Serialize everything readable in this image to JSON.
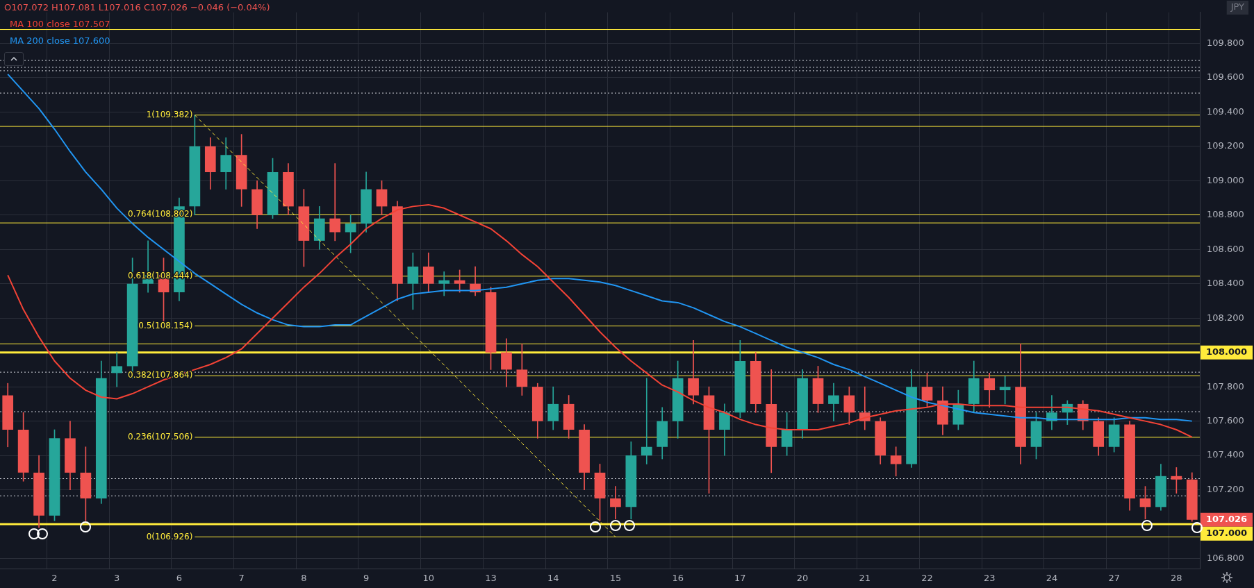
{
  "chart_data": {
    "type": "candlestick",
    "title": "O107.072 H107.081 L107.016 C107.026 −0.046 (−0.04%)",
    "categories": [
      null,
      null,
      null,
      "2",
      null,
      null,
      null,
      "3",
      null,
      null,
      null,
      "6",
      null,
      null,
      null,
      "7",
      null,
      null,
      null,
      "8",
      null,
      null,
      null,
      "9",
      null,
      null,
      null,
      "10",
      null,
      null,
      null,
      "13",
      null,
      null,
      null,
      "14",
      null,
      null,
      null,
      "15",
      null,
      null,
      null,
      "16",
      null,
      null,
      null,
      "17",
      null,
      null,
      null,
      "20",
      null,
      null,
      null,
      "21",
      null,
      null,
      null,
      "22",
      null,
      null,
      null,
      "23",
      null,
      null,
      null,
      "24",
      null,
      null,
      null,
      "27",
      null,
      null,
      null,
      "28",
      null
    ],
    "ohlc": [
      [
        107.75,
        107.82,
        107.45,
        107.55
      ],
      [
        107.55,
        107.65,
        107.25,
        107.3
      ],
      [
        107.3,
        107.4,
        106.98,
        107.05
      ],
      [
        107.05,
        107.55,
        107.02,
        107.5
      ],
      [
        107.5,
        107.6,
        107.2,
        107.3
      ],
      [
        107.3,
        107.45,
        107.02,
        107.15
      ],
      [
        107.15,
        107.95,
        107.12,
        107.85
      ],
      [
        107.88,
        108.0,
        107.8,
        107.92
      ],
      [
        107.92,
        108.55,
        107.85,
        108.4
      ],
      [
        108.4,
        108.65,
        108.35,
        108.45
      ],
      [
        108.45,
        108.55,
        108.18,
        108.35
      ],
      [
        108.35,
        108.9,
        108.3,
        108.85
      ],
      [
        108.85,
        109.382,
        108.8,
        109.2
      ],
      [
        109.2,
        109.25,
        108.95,
        109.05
      ],
      [
        109.05,
        109.25,
        108.95,
        109.15
      ],
      [
        109.15,
        109.27,
        108.85,
        108.95
      ],
      [
        108.95,
        109.0,
        108.72,
        108.8
      ],
      [
        108.8,
        109.13,
        108.78,
        109.05
      ],
      [
        109.05,
        109.1,
        108.8,
        108.85
      ],
      [
        108.85,
        108.95,
        108.5,
        108.65
      ],
      [
        108.65,
        108.85,
        108.6,
        108.78
      ],
      [
        108.78,
        109.1,
        108.65,
        108.7
      ],
      [
        108.7,
        108.8,
        108.58,
        108.75
      ],
      [
        108.75,
        109.05,
        108.7,
        108.95
      ],
      [
        108.95,
        109.0,
        108.8,
        108.85
      ],
      [
        108.85,
        108.88,
        108.3,
        108.4
      ],
      [
        108.4,
        108.58,
        108.25,
        108.5
      ],
      [
        108.5,
        108.58,
        108.35,
        108.4
      ],
      [
        108.4,
        108.47,
        108.33,
        108.42
      ],
      [
        108.42,
        108.48,
        108.35,
        108.4
      ],
      [
        108.4,
        108.5,
        108.33,
        108.35
      ],
      [
        108.35,
        108.38,
        107.9,
        108.0
      ],
      [
        108.0,
        108.08,
        107.8,
        107.9
      ],
      [
        107.9,
        108.05,
        107.75,
        107.8
      ],
      [
        107.8,
        107.82,
        107.5,
        107.6
      ],
      [
        107.6,
        107.8,
        107.55,
        107.7
      ],
      [
        107.7,
        107.75,
        107.5,
        107.55
      ],
      [
        107.55,
        107.58,
        107.2,
        107.3
      ],
      [
        107.3,
        107.35,
        107.02,
        107.15
      ],
      [
        107.15,
        107.22,
        107.03,
        107.1
      ],
      [
        107.1,
        107.48,
        107.03,
        107.4
      ],
      [
        107.4,
        107.85,
        107.35,
        107.45
      ],
      [
        107.45,
        107.68,
        107.38,
        107.6
      ],
      [
        107.6,
        107.95,
        107.5,
        107.85
      ],
      [
        107.85,
        108.07,
        107.7,
        107.75
      ],
      [
        107.75,
        107.8,
        107.18,
        107.55
      ],
      [
        107.55,
        107.7,
        107.4,
        107.65
      ],
      [
        107.65,
        108.07,
        107.62,
        107.95
      ],
      [
        107.95,
        108.0,
        107.65,
        107.7
      ],
      [
        107.7,
        107.9,
        107.3,
        107.45
      ],
      [
        107.45,
        107.65,
        107.4,
        107.55
      ],
      [
        107.55,
        107.9,
        107.5,
        107.85
      ],
      [
        107.85,
        107.92,
        107.65,
        107.7
      ],
      [
        107.7,
        107.82,
        107.6,
        107.75
      ],
      [
        107.75,
        107.8,
        107.58,
        107.65
      ],
      [
        107.65,
        107.8,
        107.55,
        107.6
      ],
      [
        107.6,
        107.62,
        107.35,
        107.4
      ],
      [
        107.4,
        107.45,
        107.28,
        107.35
      ],
      [
        107.35,
        107.9,
        107.33,
        107.8
      ],
      [
        107.8,
        107.88,
        107.68,
        107.72
      ],
      [
        107.72,
        107.8,
        107.52,
        107.58
      ],
      [
        107.58,
        107.78,
        107.55,
        107.7
      ],
      [
        107.7,
        107.95,
        107.65,
        107.85
      ],
      [
        107.85,
        107.88,
        107.68,
        107.78
      ],
      [
        107.78,
        107.86,
        107.7,
        107.8
      ],
      [
        107.8,
        108.05,
        107.35,
        107.45
      ],
      [
        107.45,
        107.65,
        107.38,
        107.6
      ],
      [
        107.6,
        107.75,
        107.55,
        107.65
      ],
      [
        107.65,
        107.72,
        107.58,
        107.7
      ],
      [
        107.7,
        107.72,
        107.55,
        107.6
      ],
      [
        107.6,
        107.62,
        107.4,
        107.45
      ],
      [
        107.45,
        107.62,
        107.42,
        107.58
      ],
      [
        107.58,
        107.6,
        107.08,
        107.15
      ],
      [
        107.15,
        107.22,
        107.03,
        107.1
      ],
      [
        107.1,
        107.35,
        107.08,
        107.28
      ],
      [
        107.28,
        107.33,
        107.18,
        107.26
      ],
      [
        107.26,
        107.3,
        107.016,
        107.026
      ]
    ],
    "series": [
      {
        "type": "line",
        "name": "MA 100 close 107.507",
        "color": "#f44336",
        "values": [
          108.45,
          108.25,
          108.09,
          107.95,
          107.85,
          107.78,
          107.74,
          107.73,
          107.76,
          107.8,
          107.84,
          107.87,
          107.9,
          107.93,
          107.97,
          108.02,
          108.11,
          108.2,
          108.29,
          108.38,
          108.46,
          108.55,
          108.63,
          108.72,
          108.78,
          108.83,
          108.85,
          108.86,
          108.84,
          108.8,
          108.76,
          108.72,
          108.65,
          108.57,
          108.5,
          108.41,
          108.32,
          108.22,
          108.12,
          108.03,
          107.95,
          107.88,
          107.81,
          107.77,
          107.72,
          107.68,
          107.65,
          107.61,
          107.58,
          107.56,
          107.55,
          107.55,
          107.55,
          107.57,
          107.59,
          107.62,
          107.64,
          107.66,
          107.67,
          107.68,
          107.7,
          107.7,
          107.69,
          107.69,
          107.69,
          107.68,
          107.68,
          107.68,
          107.68,
          107.67,
          107.66,
          107.64,
          107.62,
          107.6,
          107.58,
          107.55,
          107.507
        ]
      },
      {
        "type": "line",
        "name": "MA 200 close 107.600",
        "color": "#2196f3",
        "values": [
          109.62,
          109.52,
          109.42,
          109.3,
          109.17,
          109.05,
          108.95,
          108.84,
          108.75,
          108.67,
          108.6,
          108.53,
          108.46,
          108.4,
          108.34,
          108.28,
          108.23,
          108.19,
          108.16,
          108.15,
          108.15,
          108.16,
          108.16,
          108.21,
          108.26,
          108.31,
          108.34,
          108.35,
          108.36,
          108.36,
          108.36,
          108.37,
          108.38,
          108.4,
          108.42,
          108.43,
          108.43,
          108.42,
          108.41,
          108.39,
          108.36,
          108.33,
          108.3,
          108.29,
          108.26,
          108.22,
          108.18,
          108.15,
          108.11,
          108.07,
          108.03,
          108.0,
          107.97,
          107.93,
          107.9,
          107.86,
          107.82,
          107.78,
          107.74,
          107.71,
          107.69,
          107.67,
          107.65,
          107.64,
          107.63,
          107.62,
          107.62,
          107.61,
          107.61,
          107.61,
          107.61,
          107.61,
          107.62,
          107.62,
          107.61,
          107.61,
          107.6
        ]
      },
      {
        "type": "line",
        "color": "#ffeb3b",
        "line_style": "dashed",
        "values": [
          null,
          null,
          null,
          null,
          null,
          null,
          null,
          null,
          null,
          null,
          null,
          null,
          109.382,
          null,
          null,
          null,
          null,
          null,
          null,
          null,
          null,
          null,
          null,
          null,
          null,
          null,
          null,
          null,
          null,
          null,
          null,
          null,
          null,
          null,
          null,
          null,
          null,
          null,
          null,
          106.926,
          null,
          null,
          null,
          null,
          null,
          null,
          null,
          null,
          null,
          null,
          null,
          null,
          null,
          null,
          null,
          null,
          null,
          null,
          null,
          null,
          null,
          null,
          null,
          null,
          null,
          null,
          null,
          null,
          null,
          null,
          null,
          null,
          null,
          null,
          null,
          null,
          null
        ]
      }
    ],
    "ylim": [
      106.74,
      109.98
    ],
    "yticks": [
      {
        "value": 106.8,
        "label": "106.800"
      },
      {
        "value": 107.2,
        "label": "107.200"
      },
      {
        "value": 107.4,
        "label": "107.400"
      },
      {
        "value": 107.6,
        "label": "107.600"
      },
      {
        "value": 107.8,
        "label": "107.800"
      },
      {
        "value": 108.2,
        "label": "108.200"
      },
      {
        "value": 108.4,
        "label": "108.400"
      },
      {
        "value": 108.6,
        "label": "108.600"
      },
      {
        "value": 108.8,
        "label": "108.800"
      },
      {
        "value": 109.0,
        "label": "109.000"
      },
      {
        "value": 109.2,
        "label": "109.200"
      },
      {
        "value": 109.4,
        "label": "109.400"
      },
      {
        "value": 109.6,
        "label": "109.600"
      },
      {
        "value": 109.8,
        "label": "109.800"
      }
    ],
    "ref_lines": [
      {
        "axis": "y",
        "value": 109.88,
        "color": "#ffeb3b"
      },
      {
        "axis": "y",
        "value": 109.7,
        "color": "#d1d4dc",
        "line_style": "dotted"
      },
      {
        "axis": "y",
        "value": 109.66,
        "color": "#d1d4dc",
        "line_style": "dotted"
      },
      {
        "axis": "y",
        "value": 109.64,
        "color": "#d1d4dc",
        "line_style": "dotted"
      },
      {
        "axis": "y",
        "value": 109.51,
        "color": "#d1d4dc",
        "line_style": "dotted"
      },
      {
        "axis": "y",
        "value": 109.382,
        "label": "1(109.382)",
        "color": "#ffeb3b"
      },
      {
        "axis": "y",
        "value": 109.316,
        "color": "#ffeb3b"
      },
      {
        "axis": "y",
        "value": 108.802,
        "label": "0.764(108.802)",
        "color": "#ffeb3b"
      },
      {
        "axis": "y",
        "value": 108.754,
        "color": "#ffeb3b"
      },
      {
        "axis": "y",
        "value": 108.444,
        "label": "0.618(108.444)",
        "color": "#ffeb3b"
      },
      {
        "axis": "y",
        "value": 108.154,
        "label": "0.5(108.154)",
        "color": "#ffeb3b"
      },
      {
        "axis": "y",
        "value": 108.05,
        "color": "#ffeb3b"
      },
      {
        "axis": "y",
        "value": 108.0,
        "label": "108.000",
        "color": "#ffeb3b"
      },
      {
        "axis": "y",
        "value": 107.885,
        "color": "#d1d4dc",
        "line_style": "dotted"
      },
      {
        "axis": "y",
        "value": 107.864,
        "label": "0.382(107.864)",
        "color": "#ffeb3b"
      },
      {
        "axis": "y",
        "value": 107.655,
        "color": "#d1d4dc",
        "line_style": "dotted"
      },
      {
        "axis": "y",
        "value": 107.506,
        "label": "0.236(107.506)",
        "color": "#ffeb3b"
      },
      {
        "axis": "y",
        "value": 107.265,
        "color": "#d1d4dc",
        "line_style": "dotted"
      },
      {
        "axis": "y",
        "value": 107.165,
        "color": "#d1d4dc",
        "line_style": "dotted"
      },
      {
        "axis": "y",
        "value": 107.0,
        "label": "107.000",
        "color": "#ffeb3b"
      },
      {
        "axis": "y",
        "value": 106.926,
        "label": "0(106.926)",
        "color": "#ffeb3b"
      }
    ],
    "annotations": [
      "JPY",
      "107.026"
    ],
    "grid": true,
    "legend": "top left"
  }
}
